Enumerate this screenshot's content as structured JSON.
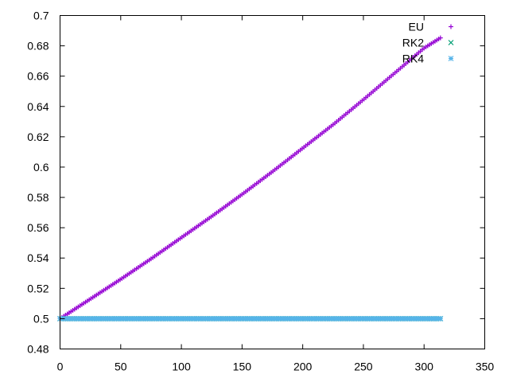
{
  "chart_data": {
    "type": "scatter",
    "title": "",
    "xlabel": "",
    "ylabel": "",
    "xlim": [
      0,
      350
    ],
    "ylim": [
      0.48,
      0.7
    ],
    "x_ticks": [
      0,
      50,
      100,
      150,
      200,
      250,
      300,
      350
    ],
    "y_ticks": [
      0.48,
      0.5,
      0.52,
      0.54,
      0.56,
      0.58,
      0.6,
      0.62,
      0.64,
      0.66,
      0.68,
      0.7
    ],
    "x_tick_labels": [
      "0",
      "50",
      "100",
      "150",
      "200",
      "250",
      "300",
      "350"
    ],
    "y_tick_labels": [
      "0.48",
      "0.5",
      "0.52",
      "0.54",
      "0.56",
      "0.58",
      "0.6",
      "0.62",
      "0.64",
      "0.66",
      "0.68",
      "0.7"
    ],
    "grid": false,
    "legend_position": "top-right",
    "series": [
      {
        "name": "EU",
        "marker": "+",
        "color": "#9400d3",
        "x": [
          0,
          25,
          50,
          75,
          100,
          125,
          150,
          175,
          200,
          225,
          250,
          275,
          300,
          314
        ],
        "y": [
          0.5,
          0.513,
          0.526,
          0.5395,
          0.5535,
          0.5675,
          0.582,
          0.597,
          0.6125,
          0.628,
          0.6445,
          0.6615,
          0.6785,
          0.6855
        ]
      },
      {
        "name": "RK2",
        "marker": "x",
        "color": "#009e73",
        "x": [
          0,
          314
        ],
        "y": [
          0.5,
          0.5
        ]
      },
      {
        "name": "RK4",
        "marker": "*",
        "color": "#56b4e9",
        "x": [
          0,
          314
        ],
        "y": [
          0.5,
          0.5
        ]
      }
    ]
  }
}
